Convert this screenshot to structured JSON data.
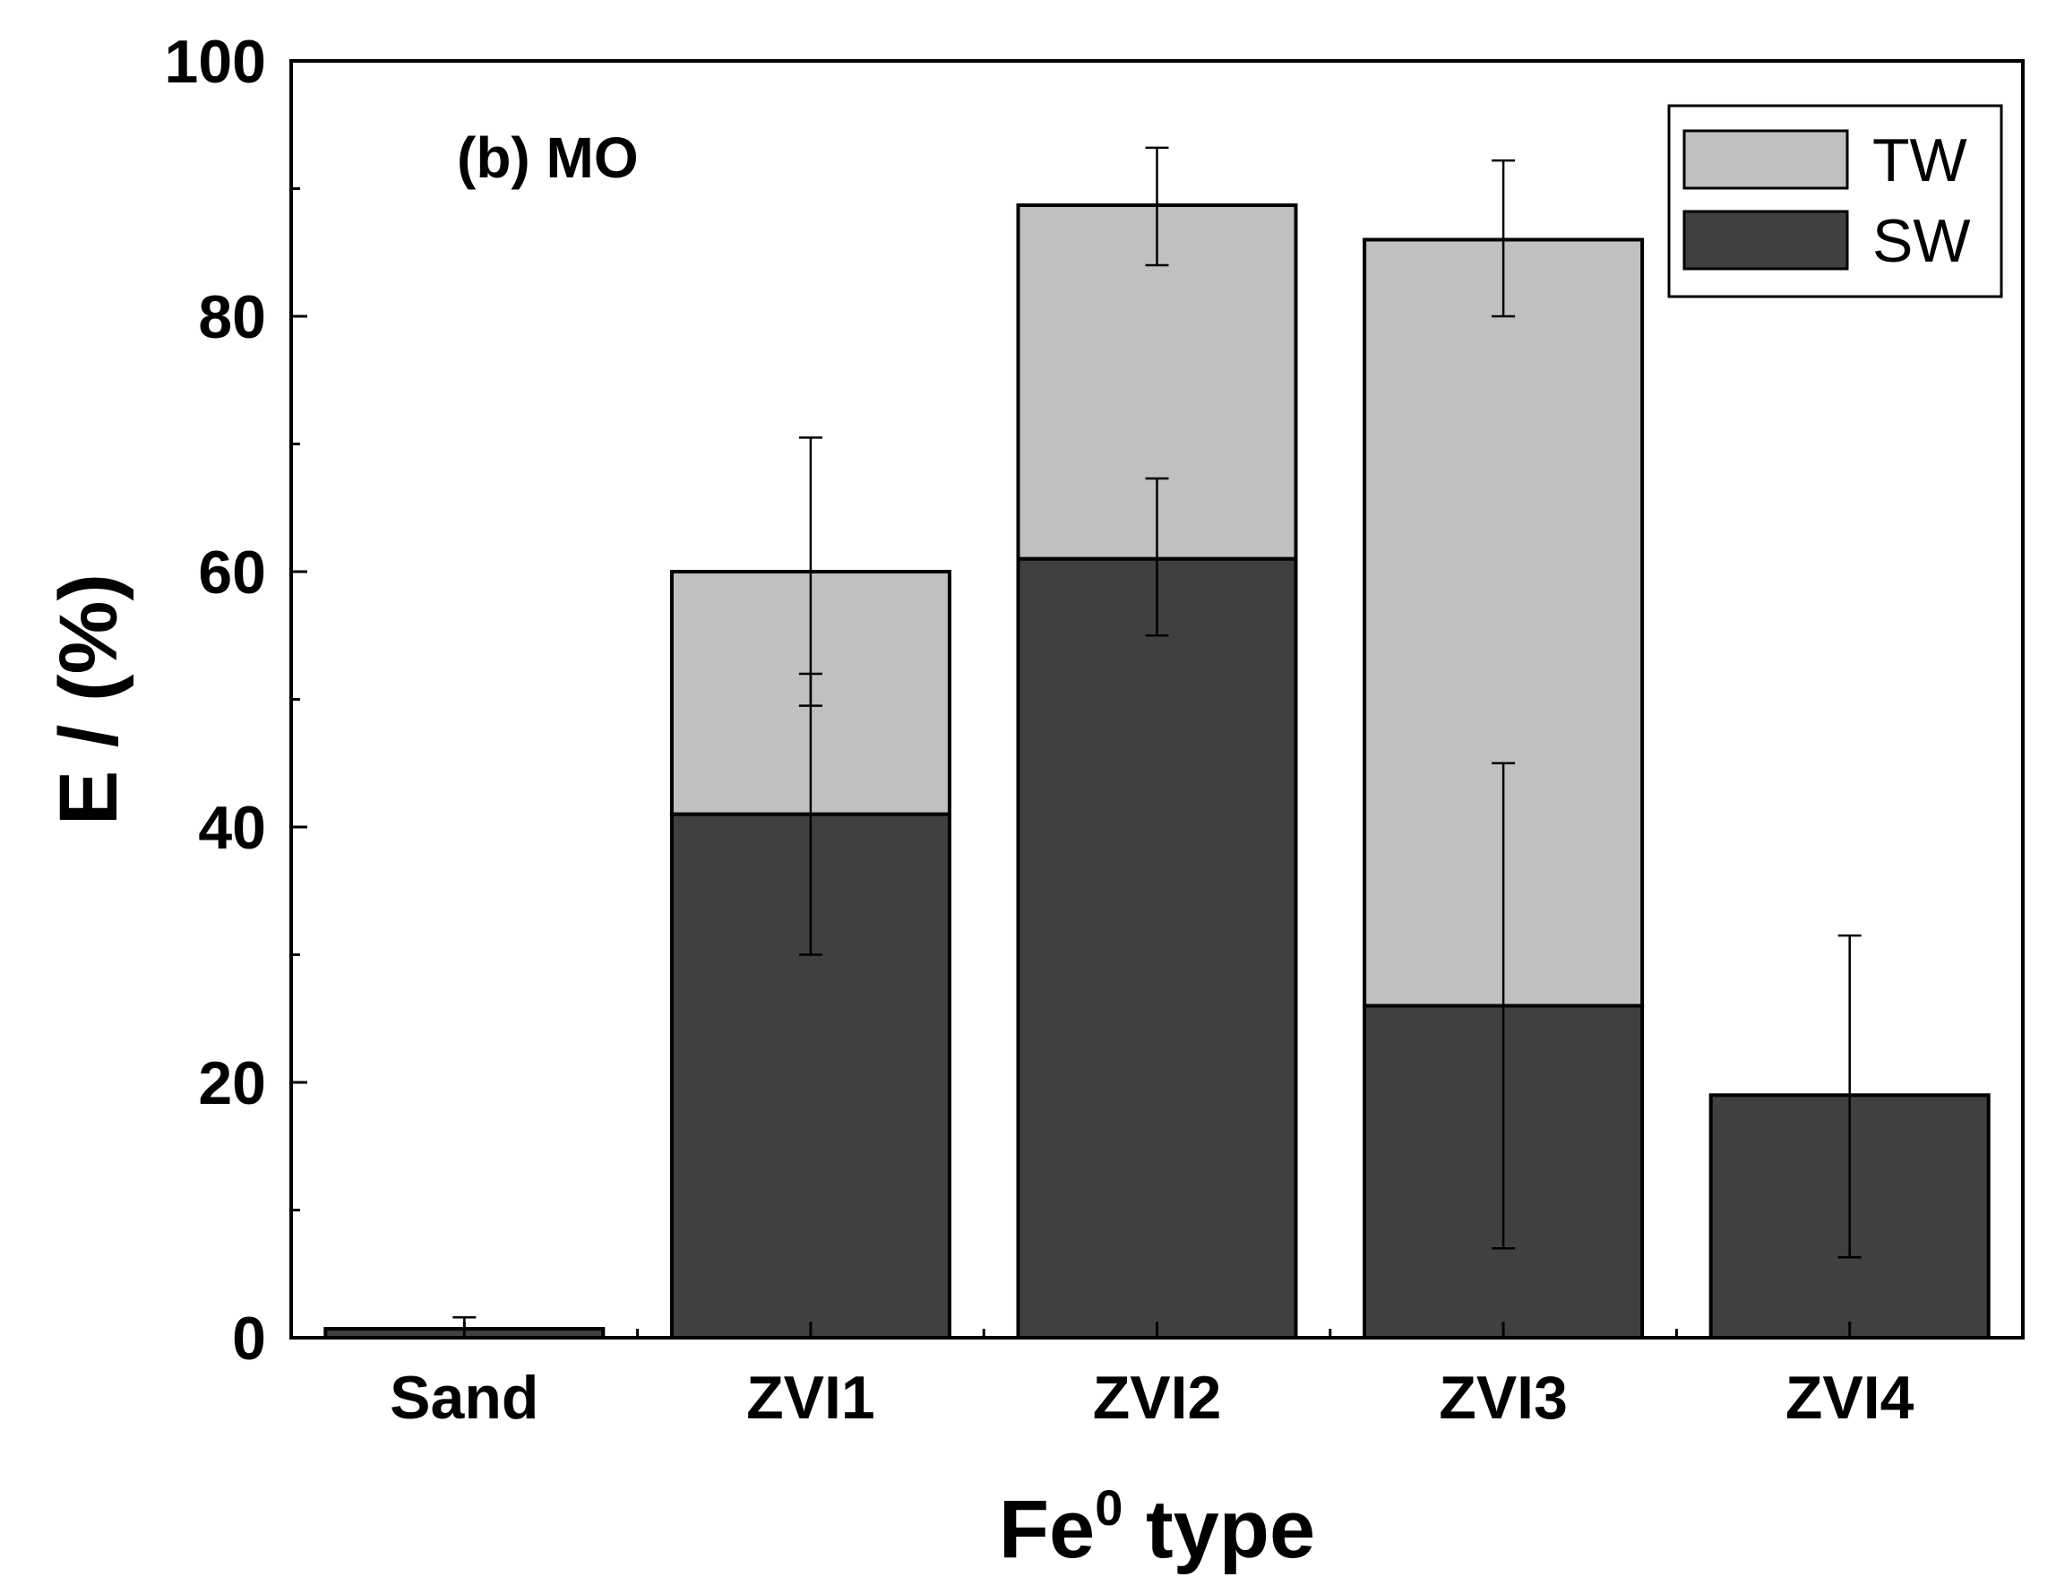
{
  "chart_data": {
    "type": "bar",
    "stacked": true,
    "title": "(b) MO",
    "xlabel": {
      "prefix": "Fe",
      "superscript": "0",
      "suffix": " type"
    },
    "ylabel": "E / (%)",
    "ylim": [
      0,
      100
    ],
    "yticks": [
      "0",
      "20",
      "40",
      "60",
      "80",
      "100"
    ],
    "categories": [
      "Sand",
      "ZVI1",
      "ZVI2",
      "ZVI3",
      "ZVI4"
    ],
    "series": [
      {
        "name": "SW",
        "color": "#404040",
        "values": [
          0.7,
          41,
          61,
          26,
          19
        ],
        "error_low": [
          0,
          30,
          55,
          7,
          6.3
        ],
        "error_high": [
          1.6,
          52,
          67.3,
          45,
          31.5
        ]
      },
      {
        "name": "TW",
        "color": "#c0c0c0",
        "values": [
          0,
          19,
          27.7,
          60,
          0
        ],
        "totals": [
          0.7,
          60,
          88.7,
          86,
          19
        ],
        "error_low": [
          null,
          49.5,
          84,
          80,
          null
        ],
        "error_high": [
          null,
          70.5,
          93.2,
          92.2,
          31.8
        ]
      }
    ],
    "legend": {
      "position": "top-right",
      "entries": [
        "TW",
        "SW"
      ]
    }
  }
}
